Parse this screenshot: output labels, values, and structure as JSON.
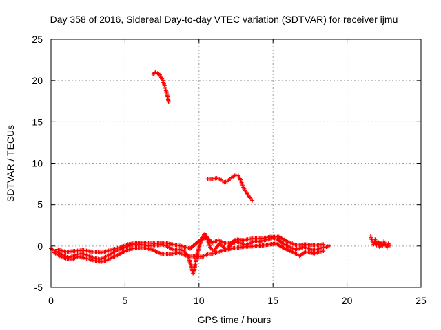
{
  "chart_data": {
    "type": "scatter",
    "title": "Day 358 of 2016, Sidereal Day-to-day VTEC variation (SDTVAR) for receiver ijmu",
    "xlabel": "GPS time / hours",
    "ylabel": "SDTVAR / TECUs",
    "xlim": [
      0,
      25
    ],
    "ylim": [
      -5,
      25
    ],
    "xticks": [
      0,
      5,
      10,
      15,
      20,
      25
    ],
    "yticks": [
      -5,
      0,
      5,
      10,
      15,
      20,
      25
    ],
    "grid": true,
    "marker": "+",
    "series": [
      {
        "name": "SDTVAR",
        "color": "#ff0000",
        "segments": [
          {
            "label": "main-band",
            "points": [
              [
                0.0,
                -0.3
              ],
              [
                0.3,
                -0.6
              ],
              [
                0.6,
                -0.9
              ],
              [
                0.9,
                -1.2
              ],
              [
                1.2,
                -1.4
              ],
              [
                1.5,
                -1.2
              ],
              [
                1.8,
                -1.0
              ],
              [
                2.1,
                -0.9
              ],
              [
                2.4,
                -1.1
              ],
              [
                2.7,
                -1.3
              ],
              [
                3.0,
                -1.5
              ],
              [
                3.3,
                -1.6
              ],
              [
                3.6,
                -1.4
              ],
              [
                3.9,
                -1.1
              ],
              [
                4.2,
                -0.8
              ],
              [
                4.5,
                -0.5
              ],
              [
                4.8,
                -0.3
              ],
              [
                5.1,
                -0.1
              ],
              [
                5.4,
                0.1
              ],
              [
                5.7,
                0.2
              ],
              [
                6.0,
                0.2
              ],
              [
                6.3,
                0.1
              ],
              [
                6.6,
                0.0
              ],
              [
                6.9,
                0.1
              ],
              [
                7.2,
                0.1
              ],
              [
                7.5,
                0.2
              ],
              [
                7.8,
                0.0
              ],
              [
                8.1,
                -0.3
              ],
              [
                8.4,
                -0.5
              ],
              [
                8.7,
                -0.4
              ],
              [
                9.0,
                -0.6
              ],
              [
                9.3,
                -1.4
              ],
              [
                9.5,
                -2.6
              ],
              [
                9.6,
                -3.3
              ],
              [
                9.7,
                -2.8
              ],
              [
                9.8,
                -1.5
              ],
              [
                10.0,
                -0.2
              ],
              [
                10.2,
                1.0
              ],
              [
                10.4,
                1.5
              ],
              [
                10.6,
                0.6
              ],
              [
                10.8,
                -0.3
              ],
              [
                11.0,
                -0.6
              ],
              [
                11.2,
                -0.1
              ],
              [
                11.4,
                0.3
              ],
              [
                11.6,
                0.0
              ],
              [
                11.8,
                -0.4
              ],
              [
                12.0,
                -0.1
              ],
              [
                12.3,
                0.4
              ],
              [
                12.6,
                0.5
              ],
              [
                12.9,
                0.3
              ],
              [
                13.2,
                0.1
              ],
              [
                13.5,
                0.4
              ],
              [
                13.8,
                0.6
              ],
              [
                14.1,
                0.5
              ],
              [
                14.4,
                0.7
              ],
              [
                14.7,
                0.8
              ],
              [
                15.0,
                1.0
              ],
              [
                15.3,
                0.8
              ],
              [
                15.6,
                0.4
              ],
              [
                15.9,
                0.1
              ],
              [
                16.2,
                -0.2
              ],
              [
                16.5,
                -0.4
              ],
              [
                16.8,
                -0.3
              ],
              [
                17.1,
                -0.1
              ],
              [
                17.4,
                -0.3
              ],
              [
                17.7,
                -0.5
              ],
              [
                18.0,
                -0.4
              ],
              [
                18.3,
                -0.2
              ],
              [
                18.6,
                -0.1
              ],
              [
                18.8,
                0.0
              ]
            ]
          },
          {
            "label": "main-band-lower",
            "points": [
              [
                0.2,
                -0.8
              ],
              [
                0.6,
                -1.2
              ],
              [
                1.0,
                -1.5
              ],
              [
                1.4,
                -1.6
              ],
              [
                1.8,
                -1.3
              ],
              [
                2.2,
                -1.4
              ],
              [
                2.6,
                -1.6
              ],
              [
                3.0,
                -1.8
              ],
              [
                3.4,
                -1.9
              ],
              [
                3.8,
                -1.7
              ],
              [
                4.1,
                -1.4
              ],
              [
                4.4,
                -1.2
              ],
              [
                5.0,
                -0.6
              ],
              [
                5.5,
                -0.3
              ],
              [
                6.2,
                -0.2
              ],
              [
                6.8,
                -0.4
              ],
              [
                7.4,
                -0.9
              ],
              [
                8.0,
                -1.0
              ],
              [
                8.6,
                -0.8
              ],
              [
                9.2,
                -1.2
              ],
              [
                10.2,
                -1.3
              ],
              [
                10.6,
                -1.0
              ],
              [
                11.0,
                -0.9
              ],
              [
                11.5,
                -0.6
              ],
              [
                12.2,
                -0.3
              ],
              [
                13.0,
                -0.1
              ],
              [
                14.0,
                0.0
              ],
              [
                15.2,
                0.3
              ],
              [
                15.8,
                -0.3
              ],
              [
                16.4,
                -0.8
              ],
              [
                16.8,
                -1.2
              ],
              [
                17.2,
                -0.7
              ],
              [
                17.8,
                -0.9
              ],
              [
                18.4,
                -0.6
              ]
            ]
          },
          {
            "label": "main-band-upper",
            "points": [
              [
                0.4,
                -0.4
              ],
              [
                1.0,
                -0.7
              ],
              [
                1.6,
                -0.6
              ],
              [
                2.2,
                -0.5
              ],
              [
                2.8,
                -0.7
              ],
              [
                3.4,
                -0.8
              ],
              [
                4.0,
                -0.5
              ],
              [
                4.6,
                -0.2
              ],
              [
                5.2,
                0.2
              ],
              [
                5.8,
                0.4
              ],
              [
                6.4,
                0.4
              ],
              [
                7.0,
                0.3
              ],
              [
                7.6,
                0.4
              ],
              [
                8.2,
                0.2
              ],
              [
                8.8,
                0.0
              ],
              [
                9.4,
                -0.3
              ],
              [
                10.0,
                0.6
              ],
              [
                10.5,
                1.1
              ],
              [
                10.9,
                0.4
              ],
              [
                11.3,
                0.7
              ],
              [
                11.7,
                0.4
              ],
              [
                12.1,
                0.3
              ],
              [
                12.5,
                0.8
              ],
              [
                13.0,
                0.7
              ],
              [
                13.6,
                0.9
              ],
              [
                14.2,
                0.9
              ],
              [
                14.8,
                1.1
              ],
              [
                15.4,
                1.1
              ],
              [
                16.0,
                0.5
              ],
              [
                16.6,
                0.1
              ],
              [
                17.2,
                0.2
              ],
              [
                17.8,
                0.1
              ],
              [
                18.4,
                0.2
              ]
            ]
          },
          {
            "label": "arc-20",
            "points": [
              [
                6.9,
                20.8
              ],
              [
                7.05,
                21.0
              ],
              [
                7.2,
                20.9
              ],
              [
                7.35,
                20.7
              ],
              [
                7.5,
                20.2
              ],
              [
                7.6,
                19.8
              ],
              [
                7.7,
                19.2
              ],
              [
                7.8,
                18.6
              ],
              [
                7.9,
                17.9
              ],
              [
                7.95,
                17.4
              ]
            ]
          },
          {
            "label": "arc-8",
            "points": [
              [
                10.6,
                8.1
              ],
              [
                10.9,
                8.1
              ],
              [
                11.2,
                8.2
              ],
              [
                11.5,
                8.0
              ],
              [
                11.7,
                7.7
              ],
              [
                11.9,
                7.8
              ],
              [
                12.1,
                8.1
              ],
              [
                12.3,
                8.4
              ],
              [
                12.5,
                8.6
              ],
              [
                12.65,
                8.5
              ],
              [
                12.8,
                8.0
              ],
              [
                12.95,
                7.3
              ],
              [
                13.1,
                6.7
              ],
              [
                13.3,
                6.2
              ],
              [
                13.5,
                5.7
              ],
              [
                13.6,
                5.5
              ]
            ]
          },
          {
            "label": "cluster-22",
            "points": [
              [
                21.6,
                1.2
              ],
              [
                21.7,
                0.6
              ],
              [
                21.8,
                0.2
              ],
              [
                21.9,
                0.8
              ],
              [
                22.0,
                0.1
              ],
              [
                22.1,
                0.5
              ],
              [
                22.2,
                -0.1
              ],
              [
                22.3,
                0.4
              ],
              [
                22.4,
                0.0
              ],
              [
                22.5,
                0.6
              ],
              [
                22.6,
                0.2
              ],
              [
                22.7,
                -0.2
              ],
              [
                22.8,
                0.3
              ],
              [
                22.9,
                0.1
              ]
            ]
          }
        ]
      }
    ]
  }
}
